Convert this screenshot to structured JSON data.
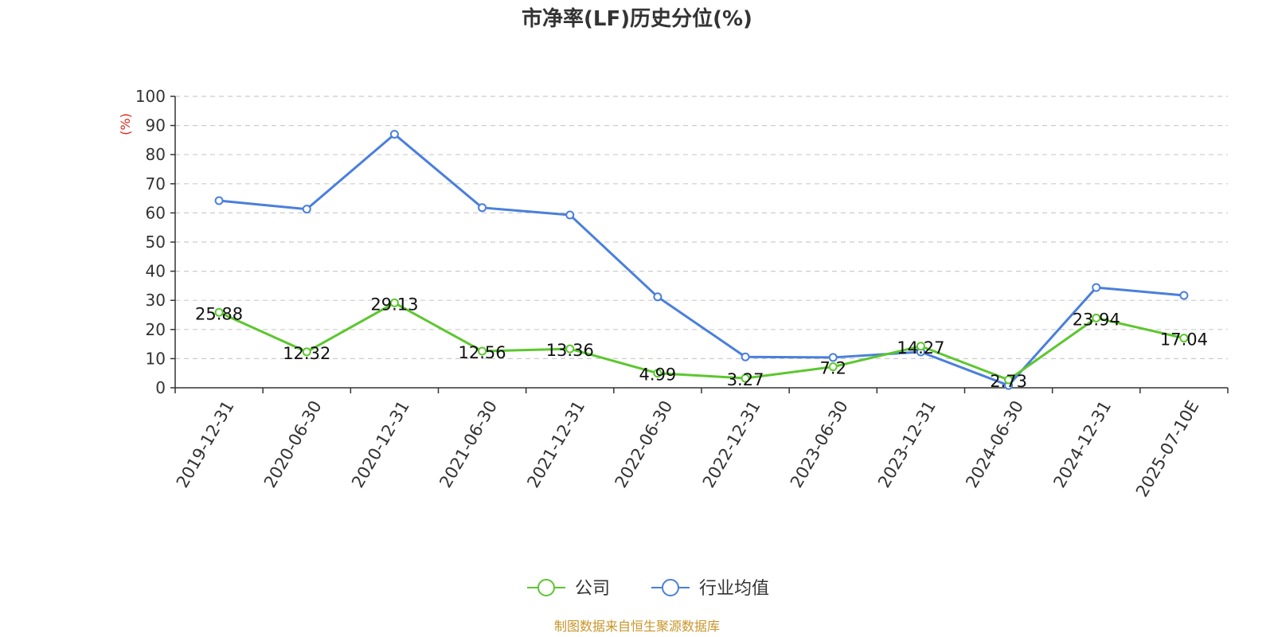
{
  "chart_data": {
    "type": "line",
    "title": "市净率(LF)历史分位(%)",
    "ylabel": "(%)",
    "ylim": [
      0,
      100
    ],
    "yticks": [
      0,
      10,
      20,
      30,
      40,
      50,
      60,
      70,
      80,
      90,
      100
    ],
    "grid": true,
    "legend_position": "bottom",
    "categories": [
      "2019-12-31",
      "2020-06-30",
      "2020-12-31",
      "2021-06-30",
      "2021-12-31",
      "2022-06-30",
      "2022-12-31",
      "2023-06-30",
      "2023-12-31",
      "2024-06-30",
      "2024-12-31",
      "2025-07-10E"
    ],
    "series": [
      {
        "name": "公司",
        "color": "#5cc72e",
        "values": [
          25.88,
          12.32,
          29.13,
          12.56,
          13.36,
          4.99,
          3.27,
          7.2,
          14.27,
          2.73,
          23.94,
          17.04
        ],
        "show_labels": true
      },
      {
        "name": "行业均值",
        "color": "#4a7fdc",
        "values": [
          64.2,
          61.3,
          87.0,
          61.8,
          59.3,
          31.2,
          10.6,
          10.4,
          12.3,
          0.8,
          34.4,
          31.7
        ],
        "show_labels": false
      }
    ],
    "source": "制图数据来自恒生聚源数据库"
  },
  "colors": {
    "axis": "#333333",
    "grid": "#cccccc",
    "ylabel": "#e0241b",
    "source": "#c8952a"
  }
}
